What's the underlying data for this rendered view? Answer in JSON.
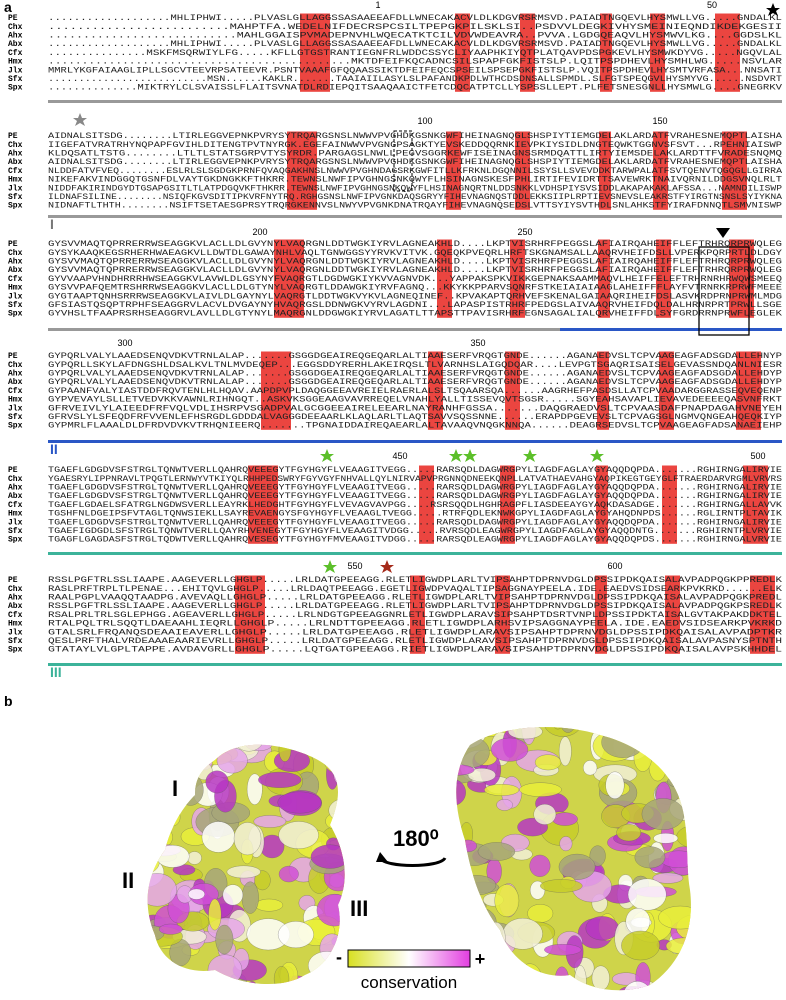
{
  "panel_a": {
    "label": "a",
    "species": [
      "PE",
      "Chx",
      "Ahx",
      "Abx",
      "Cfx",
      "Hmx",
      "Jlx",
      "Sfx",
      "Spx"
    ],
    "blocks": [
      {
        "ruler": [
          "1",
          "50"
        ],
        "rows": [
          "...................MHLIPHWI.....PLVASLGLLAGGSSASAAEEAFDLLWNECAKACVLDLKDGVRSRMSVD.PAIADTNGQEVLHYSMWLLVG.....GNDALKL",
          ".........................MAHPTFA.WEDELNIFDECRSPCSILTPEPGKPILSKLSI..PSDVVLDEGKIVHYSMEINIEQNDIKDEKGESII",
          "...........................MAHLGGAISPVMADEPNVHLWQECATKTCILVDVWDEAVRA..PVVA.LGDGQEAQVLHYSMWVLKG....GGDSLKL",
          "...................MHLIPHWI.....PLVASLGLLAGGSSASAAEEAFDLLWNECAKACVLDLKDGVRSRMSVD.PAIADTNGQEVLHYSMWLLVG.....GNDALKL",
          "...............MSKFMSQRWIYLFG.....KFLLGTGSTRANTIEGNFRLWDDCSSYCLIYAAPHKIYQTPLATQAVPDSPGKEVLHYSMWKDYVG.....NGQVLAL",
          ".............................................MKTDFEIFKQCADNCSILSPAPFGKFISTSLP.LQITPSPDHEVLHYSMHLWG.....NSVLAR",
          "MMRLYKGFAIAAGLIPLLSGCVTEEVRPSATEEVR.PSNTVAAAFGFQQAASSIKTDFEIFEQCSPSEILSPSEPGKFISTSLP.VQITPSPDHEVLHYSMTVRFASA...NNSATI",
          "..........................MSN......KAKLR.......TAAIAIILASYLSLPAFANDKPDLWTHCDSDNSALLSPMDL.SLFGTSPEQGVLHYSMYVG......NSDVRT",
          "..............MIKTRYLCLSVAISSLFLAITSVNATDLRDIEPQITSAAQAAICTFETCDQCATPTCLLYSPSSLLEPT.PLFETSNESGNLLHYSMWLG....GNEGRKV"
        ]
      },
      {
        "ruler": [
          "100",
          "150"
        ],
        "rows": [
          "AIDNALSITSDG........LTIRLEGGVEPNKPVRYSYTRQARGSNSLNWWVPVGHDKGSNKGWFIHEINAGNQGLSHSPIYTIEMGDELAKLARDATFVRAHESNEMQPTLAISHA",
          "IIGEFATVRATRHYNQPAPFGVIHLDITENGTPVTNYRGK.EGEFAINWWVPVGNGPSAGKTYEVSKEDDQQRNKIEVPKIYSIDLDNGTEQWKTGGNVSFSVT...RPEHNIAISWP",
          "KLDQSATLTSTG........LTLTLSTATSGRPVTYSYRDR.PARGAGSLNWLLPEGVSGGRKEWFISEINAGNSSRMDQATTLIRTYIEMSDELAKLARDTTFVRADESNQMQ",
          "AIDNALSITSDG........LTIRLEGGVEPNKPVRYSYTRQARGSNSLNWWVPVGHDKGSNKGWFIHEINAGNQGLSHSPIYTIEMGDELAKLARDATFVRAHESNEMQPTLAISHA",
          "NLDDFATVFVEQ........ESLRLSLSGDGKPRNFQVAQGAKHNSLNWWVPVGHNDAGSRKGWFITLLKFRKNLDGQNNILSSYSLLSVEVDDKTARWPALATFSVTQENVTQGQGLLGIRRA",
          "NIKEFAKVINDGGQTGSNFDLVAYTGKDNGKKFTHKRR.TEWNSLNWFIPVGHNGSNKQWYFLHSINAGNSKESFPHLIRTIFEVIDRTTSAVEWRKTNAIVQRNILDDGSVNQLRLT",
          "NIDDFAKIRINDGYDTGSAPGSITLTLATPDGQVKFTHKRR.TEWNSLNWFIPVGHNGSNKQWYFLHSINAGNQRTNLDDSNKKLVDHSPIYSVSIDDLAKAPAKAKLAFSSA...NAMNDILISWP",
          "ILDNAFSILINE........NSIQFKGVSDITIPKVRFNYTRQ.RGHGSNSLNWFIPVGNKDAQSGRYYFIHEVNAGNQSTDDLEKKSIIPLRPTIEVSNEVSLEAKRSTFYIRGTNSNSLSYIYKNA",
          "NIDNAFTLTHTH........NSIFTSETAESGPRSYTRQRGKENNVSLNWYVPVGNKDNATRQAYFIHEVNAGNQSEDSLVTTSYIYSVTHDLSNLAHKSTFYIRAFDNNQTLSMVNISWP"
        ]
      },
      {
        "ruler": [
          "200",
          "250"
        ],
        "rows": [
          "GYSVVMAQTQPRRERRWSEAGGKVLACLLDLGVYNYLVAQRGNLDDTWGKIYRVLAGNEAKHLD....LKPTVISRHRFPEGGSLAFIAIRQAHEIFFLEFTRHRQRPRWQLEG",
          "GYSYKAAQKEGSRHERHWAEAGKVLLDWTDLGAWAYNHLVAQLTGNWGGSYYRVKVITVK.GQEQKPVEQRLHRFTSKGNAMSALLAAQRVHEIFDSLLVPERKPQRPRTLDLDGY",
          "GYSVVMAQTQPRRERRWSEAGGKVLACLLDLGVYNYLVAQRGNLDDTWGKIYRVLAGNEAKHLD....LKPTVISRHRFPEGGSLAFIAIRQAHEIFFLEFTRHRQRPRWQLEG",
          "GYSVVMAQTQPRRERRWSEAGGKVLACLLDLGVYNYLVAQRGNLDDTWGKIYRVLAGNEAKHLD....LKPTVISRHRFPEGGSLAFIAIRQAHEIFFLEFTRHRQRPRWQLEG",
          "GYVVAAPVHNDHRRRHWSEAGGKVLAVWLDLGSYNYFVAQRGTLDGDWGKIYKVVAGNVDK...YAPPAKSPKVIKKGEPNAKSAAMMAQVLHEIFFELEFTRHRNRHRWQWSMEEQ",
          "GYSVVPAFQEMTRSHRRWSEAGGKVLACLLDLGTYNYLVAQRGTLDDAWGKIYRVFAGNQ...KKYKKPPARVSQNRFSTKEIAIAIAAGLAHEIFFFLAYFVTRNRKRPRWFMEEE",
          "GYGTAAPTQNHSRRRWSEAGGKVLAIVLDLGAYNYLVAQRGTLDDTWGKVYKVLAGNEQINEF..KPVAKAPTQRHVEFSKENALGAIAAQRIHEIFDSLASVKRDPRNPRWMLMDG",
          "GFSIASTQSQPTRPHFSEAGGRVLACVLDVGAYNYHVAQRGSLDDNWGKVYRVLAGDNI...LAPASPISTRHRFPEDGSLAIVAAQRVHEIFDQLDALHRNRPRTPRWLLSGE",
          "GYVHSLTFAAPRSRHSEAGGRVLAVLLDLGTYNYLMAQRGNLDDGWGKIYRVLAGATLTTAPSTTPAVISRHRFEGNSAGALIALQRVHEIFFDLSYFGRDRRNPRWFLEGLEK"
        ]
      },
      {
        "ruler": [
          "300",
          "350"
        ],
        "rows": [
          "GYPQRLVALYLAAEDSENQVDKVTRNLALAP.......GSGGDGEAIREQGEQARLALTIAAESERFVRQGTGNDE......AGANAEDVSLTCPVAAGEAGFADSGDALLEHNYP",
          "GYPQRLLSKYLAFDNGSHLDSALKVLTNLMVDEQEP...EGGSDDYRERHLAKEIRQSLTLVARNHSLAIGQDQAR....LEVPGTSGAQRISAISELGEVASSNDQANLNIESR",
          "GYPQRLVALYLAAEDSENQVDKVTRNLALAP.......GSGGDGEAIREQGEQARLALTIAAESERFVRQGTGNDE......AGANAEDVSLTCPVAAGEAGFADSGDALLEHDYP",
          "GYPQRLVALYLAAEDSENQVDKVTRNLALAP.......GSGGDGEAIREQGEQARLALTIAAESERFVRQGTGNDE......AGANAEDVSLTCPVAAGEAGFADSGDALLEHDYP",
          "GYPAANFVALYIASTDDFRQVTENLHLHQAV.AAPDPVPLDAQGGEEAVREIELRAERLALSLTSQAARSQA......AAGRHEFPASDSLLATCPVAADARGGRASSEQVEQENP",
          "GYPVEVAYLSLLETVEDVKKVAWNLRIHNGQT..ASKVKSGGEAAGVAVRREQELVNAHLYALLTISSEVQVTSGSR.....SGYEAHSAVAPLIEVAVEDEEEEQASVNFRKT",
          "GFRVEIVLYLAIEEDFRFVQLVDLIHSRPVSGADPVALGCGGEEAIRELEEARLNAYRANHFGSSA.......DAQGRAEDVSLTCPVAASDAFPNAPDAGAHVNEYEH",
          "GFRVSLYLSFEQDFRFVVENLEFHSRGDLGDDDALVAGGGDEEAARLKLAQLARLTLAQTSAVVSQSSNNE......ERAPDPGEVEVSLTCPVAGSGLNGMVQNGEAHQEQKIYP",
          "GYPMRLFLAAALDLDFRDVDVKVTRHQNIEERQ.......TPGNAIDDAIREQAEARLALTAVAAQVNQGKNNQA......DEAGRSEDVSLTCPVAAGEAGFADSANAEIEHP"
        ]
      },
      {
        "ruler": [
          "450",
          "500"
        ],
        "rows": [
          "TGAEFLGDGDVSFSTRGLTQNWTVERLLQAHRQVEEEGYTFGYHGYFLVEAAGITVEGG.....RARSQDLDAGWRGPYLIAGDFAGLAYGYAQQDQPDA.......RGHIRNGALIRVIE",
          "YGAESRYLIPPNRAVLTPQGTLERNWYVTKIYQLRHHPEDSWRYFGYVGYFNHVALLQYLNIRVAPVPRGNNQDNEEKQNPLLATVATHAEVAHGYAQPIKEGTGEYGLFTRAERDARVRGMLVRVRS",
          "TGAEFLGDGDVSFSTRGLTQNWTVERLLQAHRQVEEEGYTFGYHGYFLVEAAGITVEGG.....RARSQDLDAGWRGPYLIAGDFAGLAYGYAQQDQPDA.......RGHIRNGALIRVIE",
          "TGAEFLGDGDVSFSTRGLTQNWTVERLLQAHRQVEEEGYTFGYHGYFLVEAAGITVEGG.....RARSQDLDAGWRGPYLIAGDFAGLAYGYAQQDQPDA.......RGHIRNGALIRVIE",
          "TGAEFLGDAELSFATRGLNGDWSVERLLEAYRKLHEDGHTFGYHGYFLVEVAGVAVPGG....RSRSQQDLHGHRAGPFLIASDEEAYGYAQKDASADGE.......RGHIRNGALLAVVK",
          "TGSHFNLDGEIPSFVTAGLTQNWSIEKLLSAYREVAENGYSFGYHGYFLVEAAGLTVEGG.....RTRFQDLEKNWKGPYLIAGDFAGLAYGYAHQDNPDS......RGLIRNTPLTAVIK",
          "TGAEFLGDGDVSFSTRGLTQNWTVERLLQAHRQVEEEGYTFGYHGYFLVEAAGITVEGG.....RARSQDLDAGWRGPYLIAGDFAGLAYGYAQQDQPDA.......RGHIRNGALIRVIE",
          "TGAEFIGDGDLSFSTRGLTQNWTVERLLQAYRHVENEGYTFGYHGYFLVEAAGITVDGG.....RVRSQDLEAGWRGPYLIAGDFAGLAYGYAQQDNTG.......RGHIRNTPLVRVIE",
          "TGAGFLGAGDASFSTRGLTQDWTVERLLQAHRQVESEGYTFGYHGYFMVEAAGITVDGG.....RARSQDLEAGWRGPYLIAGDFAGLAYGYAQQDQPDS.......RGHIRNGALVRVIE"
        ]
      },
      {
        "ruler": [
          "550",
          "600"
        ],
        "rows": [
          "RSSLPGFTRLSSLIAAPE.AAGEVERLLGHGLP.....LRLDATGPEEAGG.RLETLIGWDPLARLTVIPSAHPTDPRNVDGLDPSSIPDKQAISALAVPADPQGKPPREDLK",
          "RASLPRFTRPLTLPENAE...EHITQVLGHGLP.....LRLDAQTPEEAGG.EGETLIGWDPVAQALTIPSAGGNAYPEELA.IDE.EAEDVSIDSEARKPVKRKD......ELK",
          "RAALPGPLVAAQQTAADPG.AVEVAQLLGHGLP.....LRLDATGPEEAGG.RLETLIGWDPLARLTVIPSAHPTDPRNVDGLDPSSIPDKQAISALAVPADPQGKPREDL",
          "RSSLPGFTRLSSLIAAPE.AAGEVERLLGHGLP.....LRLDATGPEEAGG.RLETLIGWDPLARLTVIPSAHPTDPRNVDGLDPSSIPDKQAISALAVPADPQGKPSREDLK",
          "RSALPRLTRLSGLEPHGG.AGEAVERLLGHGLP.....LRLNDGTGPEEAGGNRLETLIGWDPLARAVSIPSAHPTDSRTVNPLDPSSIPDKTAISALGVTAKPAKDDKTEL",
          "RTALPQLTRLSQQTLDAEAAHLIEQRLLGHGLP.....LRLNDTTGPEEAGG.RLETLIGWDPLARHSVIPSAGGNAYPEELA.IDE.EAEDVSIDSEARKPVKRKD",
          "GTALSRLFRQANQSDEAAIEAVERLLGHGLP.....LRLDATGPEEAGG.RLETLIGWDPLARAVSIPSAHPTDPRNVDGLDPSSIPDKQAISALAVPADPTKR",
          "QESLPRFTHALVRDEAAAEAARIEVRLLGHGLP.....LRLDATGPEEAGG.RLETLIGWDPLARAVSIPSAHPTDPRNVDGLDPSSIPDKQAISALAVPASNYSPTNTH",
          "GTATAYLVLGPLTAPPE.AVDAVGRLLGHGLP.....LQTGATGPEEAGG.RIETLIGWDPLARAVSIPSAHPTDPRNVDGLDPSSIPDKQAISALAVPSKHHDEL"
        ]
      }
    ],
    "domain_labels": [
      "I",
      "II",
      "III"
    ]
  },
  "panel_b": {
    "label": "b",
    "domain_labels": [
      "I",
      "II",
      "III"
    ],
    "rotation": "180⁰",
    "scale": {
      "low": "-",
      "high": "+",
      "title": "conservation"
    }
  }
}
